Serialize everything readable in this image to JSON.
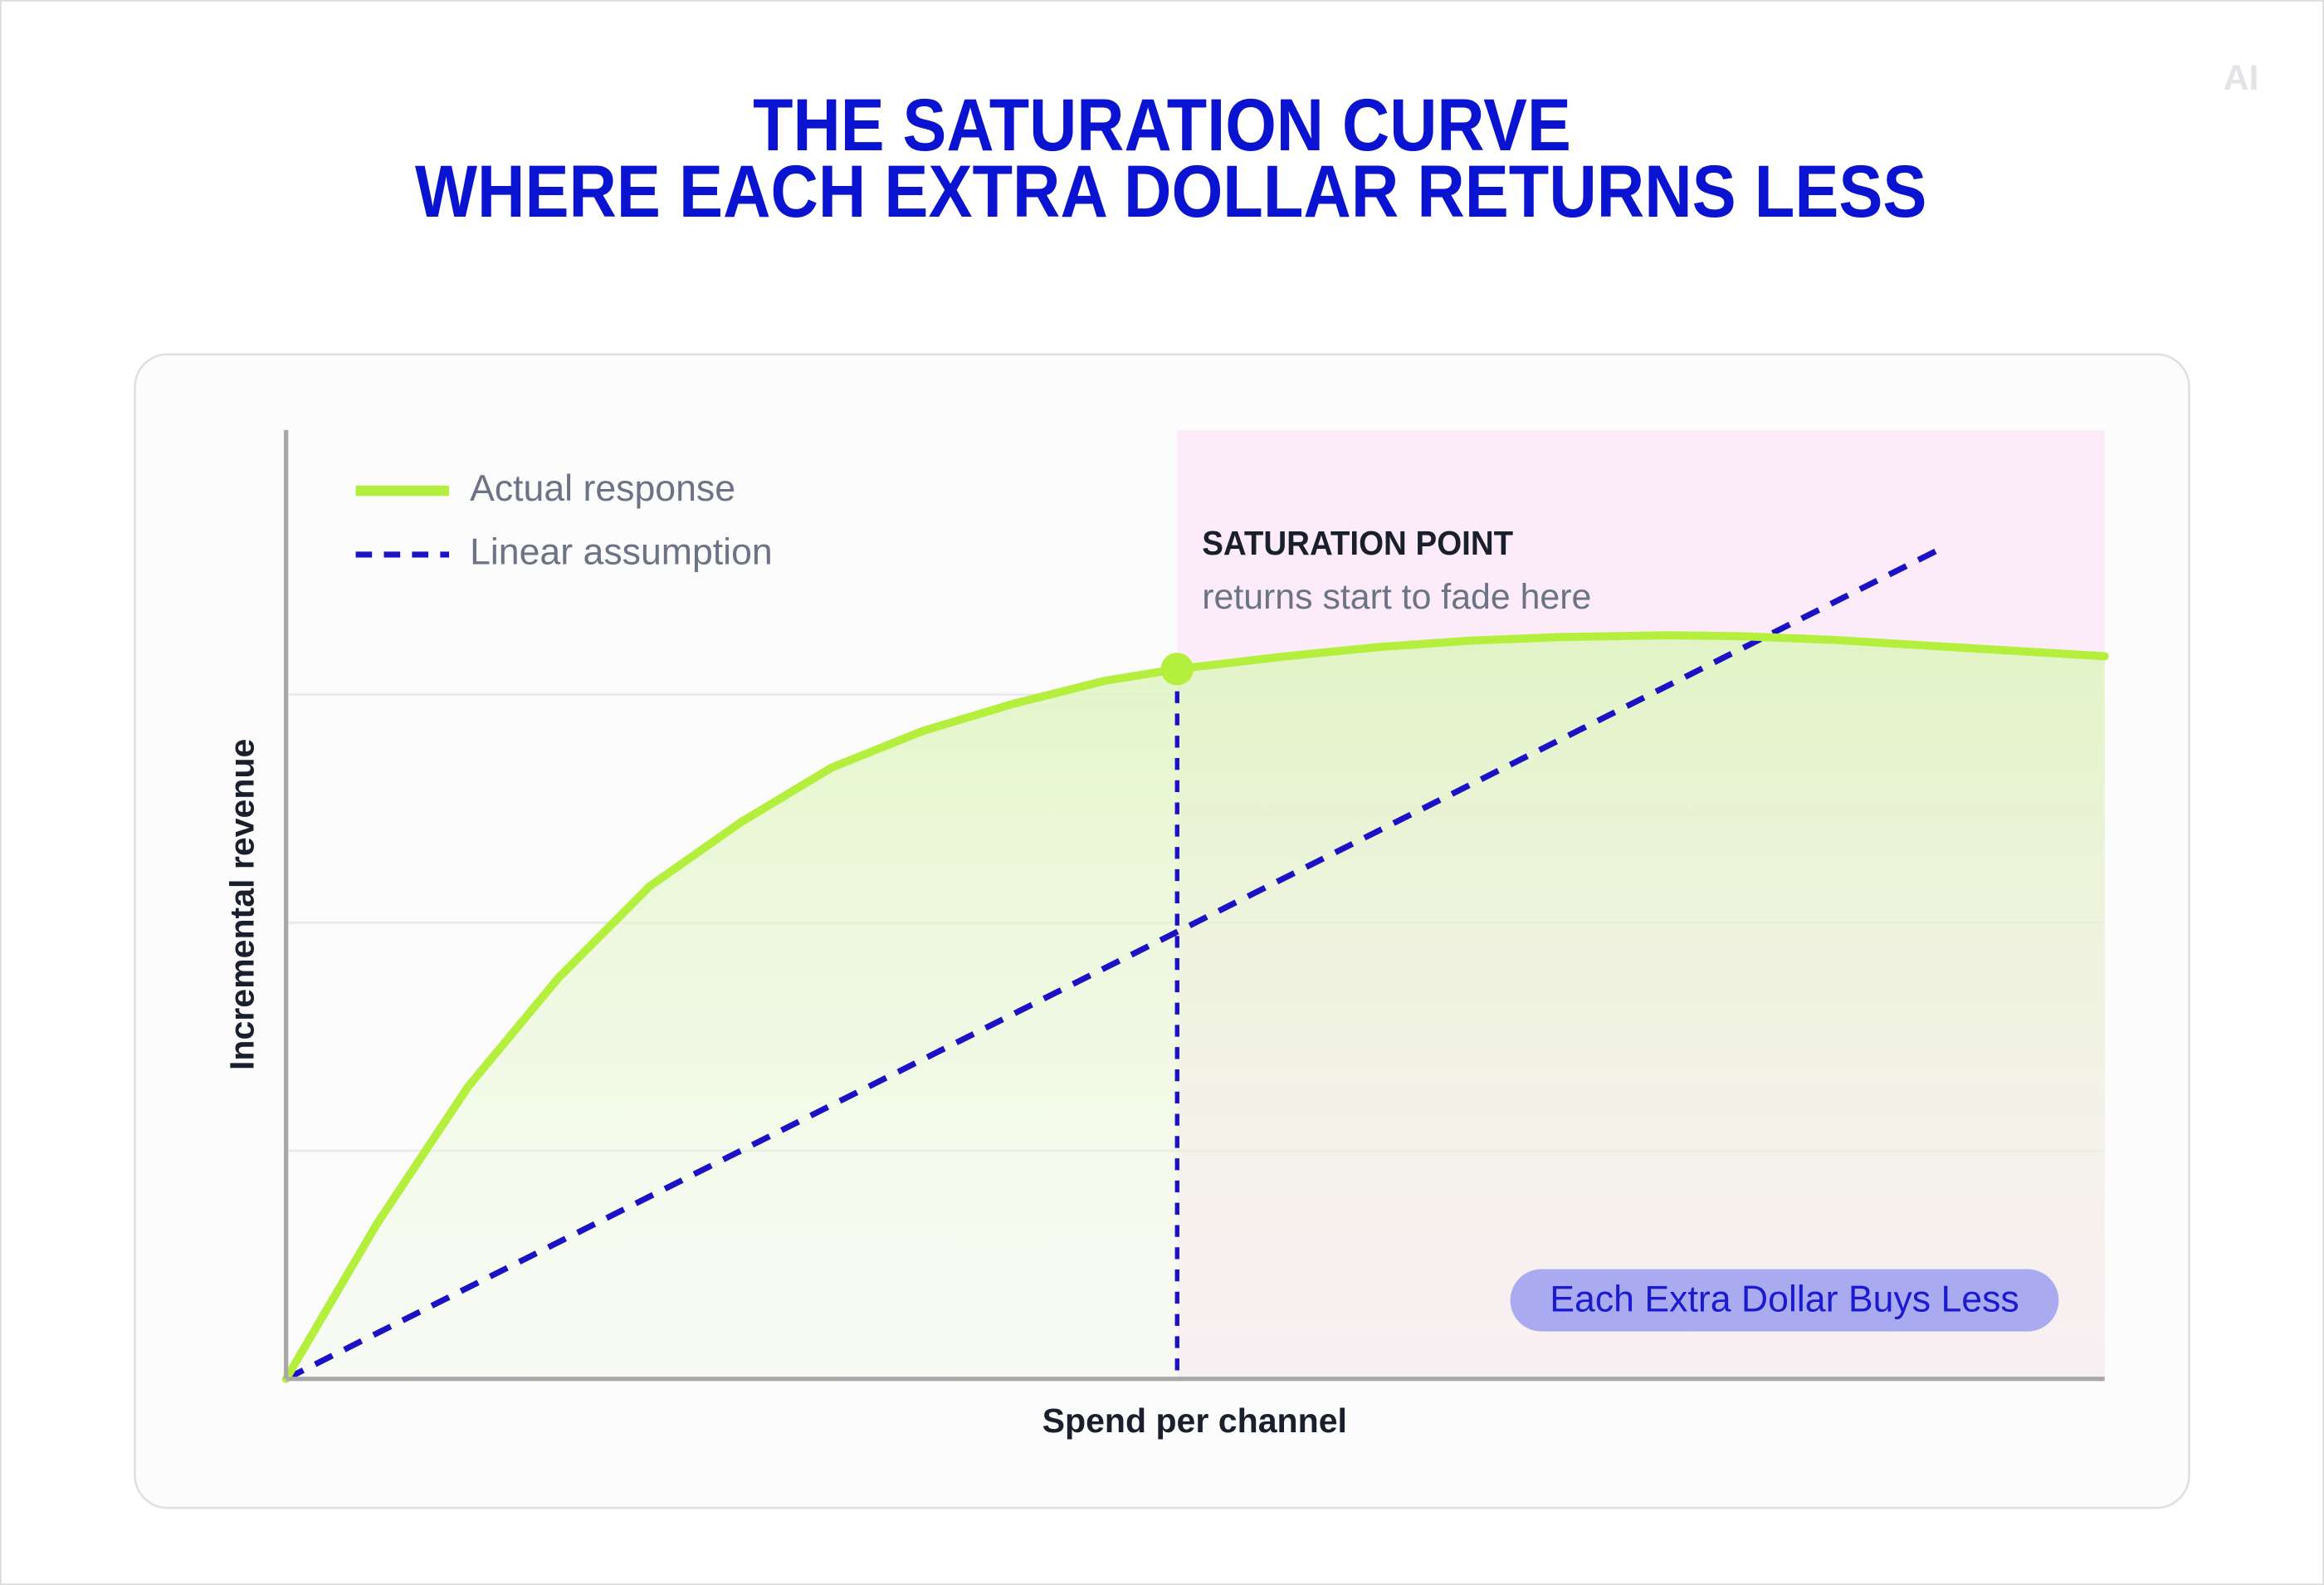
{
  "logo": "AI",
  "chart_data": {
    "type": "line",
    "title": "THE SATURATION CURVE",
    "subtitle": "WHERE EACH EXTRA DOLLAR RETURNS LESS",
    "x_label": "Spend per channel",
    "y_label": "Incremental revenue",
    "xlim": [
      0,
      100
    ],
    "ylim": [
      0,
      104
    ],
    "grid": true,
    "grid_lines": [
      25,
      50,
      75
    ],
    "legend": "upper left",
    "series": [
      {
        "name": "Actual response",
        "color": "#b5ef3e",
        "style": "solid",
        "x": [
          0,
          5,
          10,
          15,
          20,
          25,
          30,
          35,
          40,
          45,
          49,
          55,
          60,
          65,
          70,
          76,
          80,
          85,
          90,
          95,
          100
        ],
        "values": [
          0,
          17,
          32,
          44,
          54,
          61,
          67,
          71,
          74,
          76.5,
          77.8,
          79.2,
          80.2,
          80.9,
          81.3,
          81.5,
          81.4,
          81.0,
          80.4,
          79.8,
          79.2
        ]
      },
      {
        "name": "Linear assumption",
        "color": "#1a12c4",
        "style": "dashed",
        "x": [
          0,
          91
        ],
        "values": [
          0,
          91
        ]
      }
    ],
    "saturation_point": {
      "x": 49,
      "y": 77.8,
      "label": "SATURATION POINT",
      "note": "returns start to fade here"
    },
    "zone": {
      "from": 49,
      "to": 100,
      "label": "Each Extra Dollar Buys Less",
      "color": "#fcecf9"
    }
  }
}
